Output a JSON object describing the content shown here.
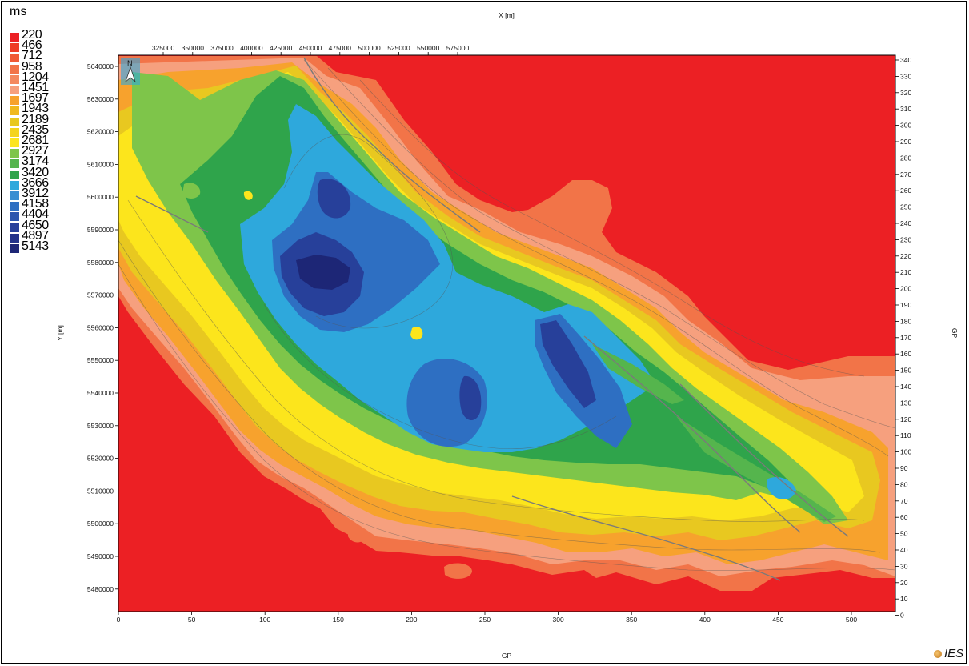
{
  "unit_label": "ms",
  "legend": [
    {
      "value": "220",
      "color": "#ec2024"
    },
    {
      "value": "466",
      "color": "#ee3c26"
    },
    {
      "value": "712",
      "color": "#f05a35"
    },
    {
      "value": "958",
      "color": "#f27448"
    },
    {
      "value": "1204",
      "color": "#f4895f"
    },
    {
      "value": "1451",
      "color": "#f6a07e"
    },
    {
      "value": "1697",
      "color": "#f7a22d"
    },
    {
      "value": "1943",
      "color": "#f0b91f"
    },
    {
      "value": "2189",
      "color": "#e8c820"
    },
    {
      "value": "2435",
      "color": "#f4d41c"
    },
    {
      "value": "2681",
      "color": "#fce51c"
    },
    {
      "value": "2927",
      "color": "#7ec54a"
    },
    {
      "value": "3174",
      "color": "#55b54d"
    },
    {
      "value": "3420",
      "color": "#2fa44b"
    },
    {
      "value": "3666",
      "color": "#2ea8dc"
    },
    {
      "value": "3912",
      "color": "#3a8fd2"
    },
    {
      "value": "4158",
      "color": "#2e6fc2"
    },
    {
      "value": "4404",
      "color": "#2b55ad"
    },
    {
      "value": "4650",
      "color": "#27409a"
    },
    {
      "value": "4897",
      "color": "#22328a"
    },
    {
      "value": "5143",
      "color": "#1d2676"
    }
  ],
  "x_axis": {
    "title": "X [m]",
    "ticks": [
      "325000",
      "350000",
      "375000",
      "400000",
      "425000",
      "450000",
      "475000",
      "500000",
      "525000",
      "550000",
      "575000"
    ]
  },
  "y_axis": {
    "title": "Y [m]",
    "ticks": [
      "5640000",
      "5630000",
      "5620000",
      "5610000",
      "5600000",
      "5590000",
      "5580000",
      "5570000",
      "5560000",
      "5550000",
      "5540000",
      "5530000",
      "5520000",
      "5510000",
      "5500000",
      "5490000",
      "5480000"
    ]
  },
  "gp_bottom": {
    "title": "GP",
    "ticks": [
      "0",
      "50",
      "100",
      "150",
      "200",
      "250",
      "300",
      "350",
      "400",
      "450",
      "500"
    ]
  },
  "gp_right": {
    "title": "GP",
    "ticks": [
      "340",
      "330",
      "320",
      "310",
      "300",
      "290",
      "280",
      "270",
      "260",
      "250",
      "240",
      "230",
      "220",
      "210",
      "200",
      "190",
      "180",
      "170",
      "160",
      "150",
      "140",
      "130",
      "120",
      "110",
      "100",
      "90",
      "80",
      "70",
      "60",
      "50",
      "40",
      "30",
      "20",
      "10",
      "0"
    ]
  },
  "north_arrow": {
    "label": "N"
  },
  "logo": {
    "text": "IES"
  },
  "colors": {
    "background": "#ec2024"
  }
}
